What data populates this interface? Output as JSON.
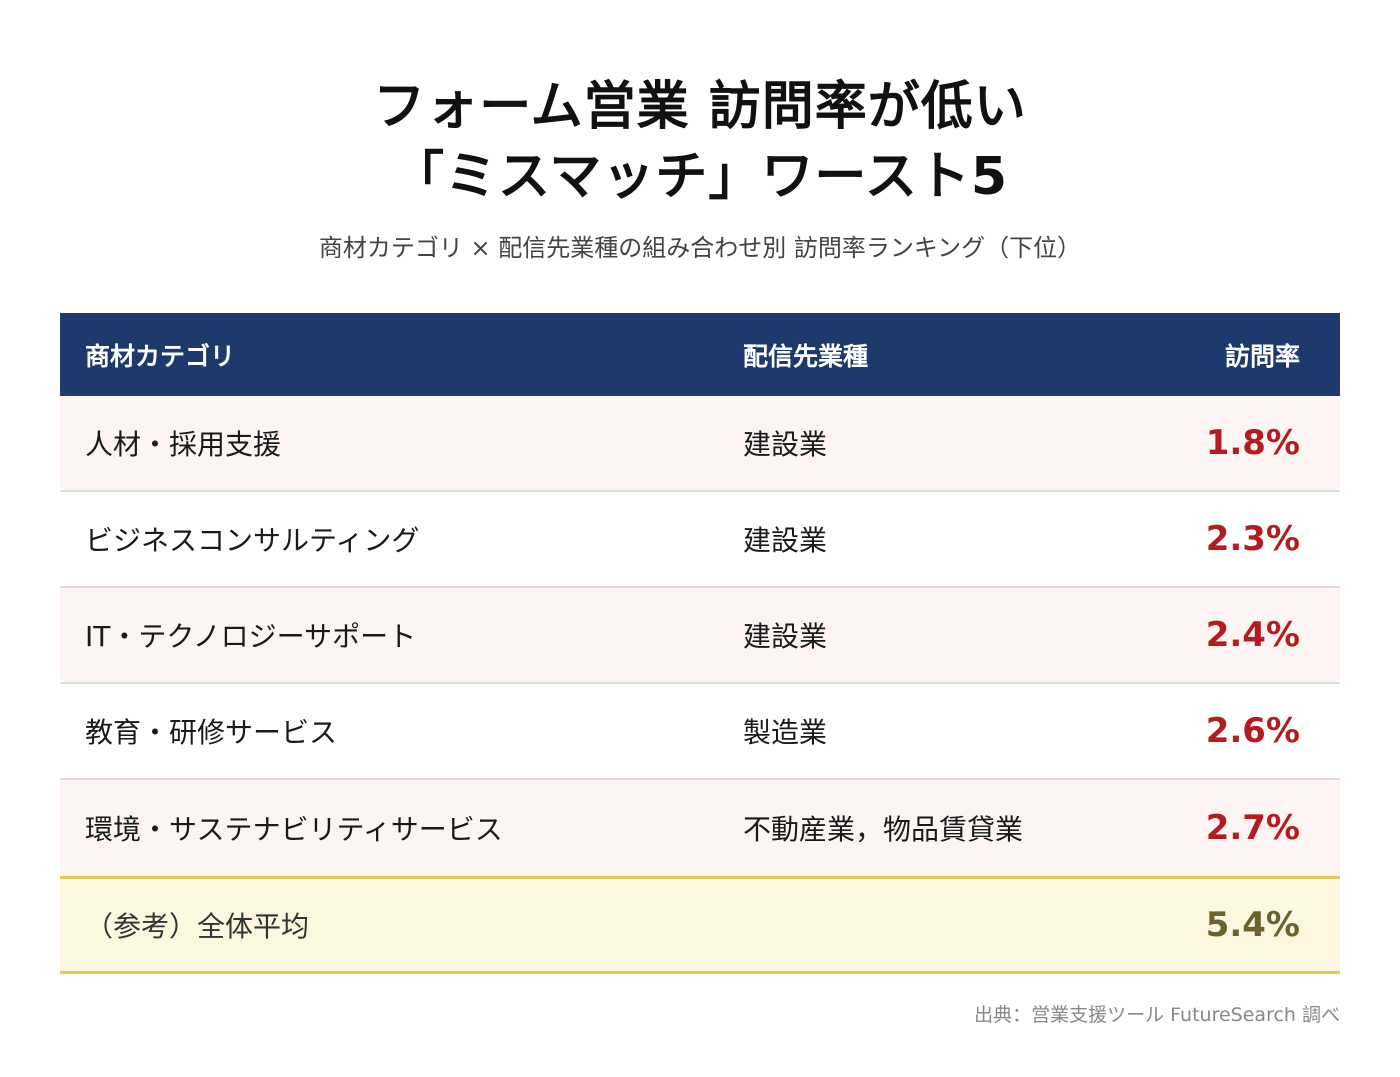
{
  "title_lines": [
    "フォーム営業 訪問率が低い",
    "「ミスマッチ」ワースト5"
  ],
  "subtitle": "商材カテゴリ × 配信先業種の組み合わせ別 訪問率ランキング（下位）",
  "table": {
    "headers": {
      "category": "商材カテゴリ",
      "industry": "配信先業種",
      "rate": "訪問率"
    },
    "rows": [
      {
        "category": "人材・採用支援",
        "industry": "建設業",
        "rate": "1.8%"
      },
      {
        "category": "ビジネスコンサルティング",
        "industry": "建設業",
        "rate": "2.3%"
      },
      {
        "category": "IT・テクノロジーサポート",
        "industry": "建設業",
        "rate": "2.4%"
      },
      {
        "category": "教育・研修サービス",
        "industry": "製造業",
        "rate": "2.6%"
      },
      {
        "category": "環境・サステナビリティサービス",
        "industry": "不動産業，物品賃貸業",
        "rate": "2.7%"
      }
    ],
    "average": {
      "label": "（参考）全体平均",
      "rate": "5.4%"
    }
  },
  "source": "出典：営業支援ツール FutureSearch 調べ",
  "colors": {
    "header_bg": "#1e3a6d",
    "rate_text": "#b01e22",
    "avg_rate_text": "#6b6230",
    "avg_border": "#e3c75a",
    "avg_bg": "#fdf7df",
    "odd_row_bg": "#fdf4f3"
  },
  "chart_data": {
    "type": "table",
    "columns": [
      "商材カテゴリ",
      "配信先業種",
      "訪問率"
    ],
    "rows": [
      [
        "人材・採用支援",
        "建設業",
        1.8
      ],
      [
        "ビジネスコンサルティング",
        "建設業",
        2.3
      ],
      [
        "IT・テクノロジーサポート",
        "建設業",
        2.4
      ],
      [
        "教育・研修サービス",
        "製造業",
        2.6
      ],
      [
        "環境・サステナビリティサービス",
        "不動産業，物品賃貸業",
        2.7
      ]
    ],
    "reference": {
      "label": "（参考）全体平均",
      "value": 5.4
    },
    "unit": "%"
  }
}
